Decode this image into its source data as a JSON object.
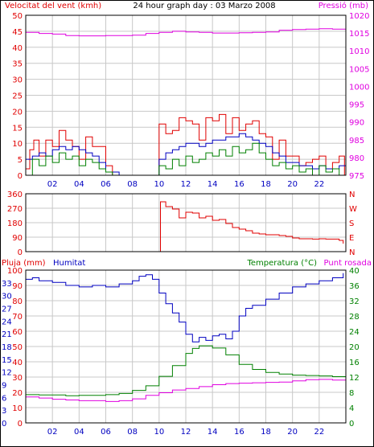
{
  "colors": {
    "red": "#e00000",
    "blue": "#0000c0",
    "green": "#008000",
    "magenta": "#e000e0",
    "grid": "#c8c8c8",
    "axis": "#000000"
  },
  "chart_data": [
    {
      "type": "line",
      "title": "24 hour graph day : 03 Marzo 2008",
      "ylabel": "Velocitat del vent (kmh)",
      "ylabel_right": "Pressió (mb)",
      "ylim": [
        0,
        50
      ],
      "ylim_right": [
        975,
        1020
      ],
      "yticks": [
        "0",
        "5",
        "10",
        "15",
        "20",
        "25",
        "30",
        "35",
        "40",
        "45",
        "50"
      ],
      "yticks_right": [
        "975",
        "980",
        "985",
        "990",
        "995",
        "1000",
        "1005",
        "1010",
        "1015",
        "1020"
      ],
      "xlim": [
        0,
        24
      ],
      "xticks": [
        "02",
        "04",
        "06",
        "08",
        "10",
        "12",
        "14",
        "16",
        "18",
        "20",
        "22"
      ],
      "grid": true,
      "series": [
        {
          "color": "red",
          "axis": "left",
          "x": [
            0,
            0.3,
            0.6,
            1,
            1.5,
            2,
            2.5,
            3,
            3.5,
            4,
            4.5,
            5,
            5.5,
            6,
            6.5,
            8.5,
            9,
            9.5,
            10,
            10.5,
            11,
            11.5,
            12,
            12.5,
            13,
            13.5,
            14,
            14.5,
            15,
            15.5,
            16,
            16.5,
            17,
            17.5,
            18,
            18.5,
            19,
            19.5,
            20,
            20.5,
            21,
            21.5,
            22,
            22.5,
            23,
            23.5,
            23.9
          ],
          "y": [
            2,
            8,
            11,
            6,
            11,
            9,
            14,
            11,
            9,
            5,
            12,
            9,
            9,
            3,
            0,
            0,
            0,
            0,
            16,
            13,
            14,
            18,
            17,
            16,
            11,
            18,
            17,
            19,
            13,
            18,
            14,
            16,
            17,
            13,
            12,
            5,
            11,
            6,
            6,
            3,
            4,
            5,
            6,
            2,
            4,
            6,
            0
          ]
        },
        {
          "color": "blue",
          "axis": "left",
          "x": [
            0,
            0.5,
            1,
            1.5,
            2,
            2.5,
            3,
            3.5,
            4,
            4.5,
            5,
            5.5,
            6,
            7,
            8,
            9,
            10,
            10.5,
            11,
            11.5,
            12,
            12.5,
            13,
            13.5,
            14,
            14.5,
            15,
            15.5,
            16,
            16.5,
            17,
            17.5,
            18,
            18.5,
            19,
            19.5,
            20,
            20.5,
            21,
            21.5,
            22,
            22.5,
            23,
            23.5,
            24
          ],
          "y": [
            5,
            6,
            7,
            6,
            8,
            9,
            8,
            9,
            8,
            7,
            6,
            4,
            1,
            0,
            0,
            0,
            5,
            7,
            8,
            9,
            10,
            10,
            9,
            10,
            11,
            11,
            12,
            12,
            13,
            12,
            11,
            10,
            9,
            7,
            6,
            4,
            4,
            3,
            3,
            2,
            3,
            2,
            2,
            3,
            1
          ]
        },
        {
          "color": "green",
          "axis": "left",
          "x": [
            0,
            0.5,
            1,
            1.5,
            2,
            2.5,
            3,
            3.5,
            4,
            4.5,
            5,
            5.5,
            6,
            6.5,
            9.5,
            10,
            10.5,
            11,
            11.5,
            12,
            12.5,
            13,
            13.5,
            14,
            14.5,
            15,
            15.5,
            16,
            16.5,
            17,
            17.5,
            18,
            18.5,
            19,
            19.5,
            20,
            20.5,
            21,
            21.5,
            22,
            22.5,
            23,
            23.5,
            24
          ],
          "y": [
            0,
            5,
            3,
            6,
            4,
            7,
            5,
            6,
            3,
            5,
            4,
            2,
            1,
            0,
            0,
            3,
            2,
            5,
            3,
            6,
            4,
            5,
            7,
            6,
            8,
            6,
            9,
            7,
            8,
            10,
            7,
            5,
            3,
            4,
            2,
            3,
            1,
            2,
            0,
            3,
            1,
            2,
            0,
            1
          ]
        },
        {
          "color": "magenta",
          "axis": "right",
          "x": [
            0,
            1,
            2,
            3,
            4,
            5,
            6,
            7,
            8,
            9,
            10,
            11,
            12,
            13,
            14,
            15,
            16,
            17,
            18,
            19,
            20,
            21,
            22,
            23,
            24
          ],
          "y": [
            1015.2,
            1014.9,
            1014.7,
            1014.3,
            1014.2,
            1014.2,
            1014.3,
            1014.3,
            1014.4,
            1014.9,
            1015.2,
            1015.5,
            1015.3,
            1015.2,
            1015.0,
            1015.0,
            1015.1,
            1015.2,
            1015.3,
            1015.8,
            1016.0,
            1016.1,
            1016.2,
            1016.1,
            1015.7
          ]
        }
      ]
    },
    {
      "type": "line",
      "ylim": [
        0,
        360
      ],
      "yticks": [
        "0",
        "90",
        "180",
        "270",
        "360"
      ],
      "yticks_right": [
        "N",
        "E",
        "S",
        "W",
        "N"
      ],
      "xlim": [
        0,
        24
      ],
      "grid": true,
      "series": [
        {
          "color": "red",
          "x": [
            10,
            10.1,
            10.5,
            11,
            11.5,
            12,
            12.5,
            13,
            13.5,
            14,
            14.5,
            15,
            15.5,
            16,
            16.5,
            17,
            17.5,
            18,
            18.5,
            19,
            19.5,
            20,
            20.5,
            21,
            21.5,
            22,
            22.5,
            23,
            23.5,
            23.8
          ],
          "y": [
            0,
            310,
            280,
            265,
            210,
            245,
            240,
            210,
            220,
            195,
            200,
            175,
            150,
            140,
            130,
            115,
            110,
            105,
            105,
            100,
            95,
            85,
            80,
            80,
            78,
            80,
            78,
            78,
            70,
            50
          ]
        }
      ]
    },
    {
      "type": "line",
      "ylabel": "Pluja (mm)",
      "ylabel2": "Humitat",
      "ylabel_right": "Temperatura (°C)",
      "ylabel_right2": "Punt rosada",
      "ylim": [
        0,
        100
      ],
      "ylim_right": [
        0,
        40
      ],
      "yticks": [
        "0",
        "10",
        "20",
        "30",
        "40",
        "50",
        "60",
        "70",
        "80",
        "90",
        "100"
      ],
      "yticks_mid": [
        "0",
        "3",
        "6",
        "9",
        "12",
        "15",
        "18",
        "21",
        "24",
        "27",
        "30",
        "33"
      ],
      "yticks_right": [
        "0",
        "4",
        "8",
        "12",
        "16",
        "20",
        "24",
        "28",
        "32",
        "36",
        "40"
      ],
      "xlim": [
        0,
        24
      ],
      "xticks": [
        "02",
        "04",
        "06",
        "08",
        "10",
        "12",
        "14",
        "16",
        "18",
        "20",
        "22"
      ],
      "grid": true,
      "series": [
        {
          "color": "blue",
          "axis": "left",
          "x": [
            0,
            0.5,
            1,
            2,
            3,
            4,
            5,
            6,
            7,
            8,
            8.5,
            9,
            9.5,
            10,
            10.5,
            11,
            11.5,
            12,
            12.5,
            13,
            13.5,
            14,
            14.5,
            15,
            15.5,
            16,
            16.5,
            17,
            18,
            19,
            20,
            21,
            22,
            23,
            23.8
          ],
          "y": [
            94,
            95,
            93,
            92,
            90,
            89,
            90,
            89,
            91,
            93,
            96,
            97,
            94,
            85,
            78,
            72,
            66,
            58,
            53,
            56,
            54,
            57,
            58,
            55,
            60,
            70,
            75,
            77,
            81,
            85,
            89,
            91,
            93,
            95,
            98
          ]
        },
        {
          "color": "green",
          "axis": "right",
          "x": [
            0,
            1,
            2,
            3,
            4,
            5,
            6,
            7,
            8,
            9,
            10,
            11,
            12,
            12.5,
            13,
            14,
            15,
            16,
            17,
            18,
            19,
            20,
            21,
            22,
            23,
            24
          ],
          "y": [
            7.4,
            7.3,
            7.3,
            7.1,
            7.2,
            7.2,
            7.4,
            7.7,
            8.5,
            9.7,
            12.2,
            15.0,
            18.2,
            19.5,
            20.2,
            19.6,
            17.8,
            15.3,
            14.0,
            13.2,
            12.8,
            12.5,
            12.4,
            12.3,
            12.1,
            11.5
          ]
        },
        {
          "color": "magenta",
          "axis": "right",
          "x": [
            0,
            1,
            2,
            3,
            4,
            5,
            6,
            7,
            8,
            9,
            10,
            11,
            12,
            13,
            14,
            15,
            16,
            17,
            18,
            19,
            20,
            21,
            22,
            23,
            24
          ],
          "y": [
            6.8,
            6.5,
            6.2,
            6.0,
            5.8,
            5.8,
            5.6,
            5.8,
            6.3,
            7.2,
            7.9,
            8.6,
            9.0,
            9.5,
            10.0,
            10.3,
            10.4,
            10.5,
            10.6,
            10.7,
            11.0,
            11.3,
            11.4,
            11.2,
            11.2
          ]
        },
        {
          "color": "red",
          "axis": "left",
          "x": [
            0,
            24
          ],
          "y": [
            0,
            0
          ]
        }
      ]
    }
  ]
}
